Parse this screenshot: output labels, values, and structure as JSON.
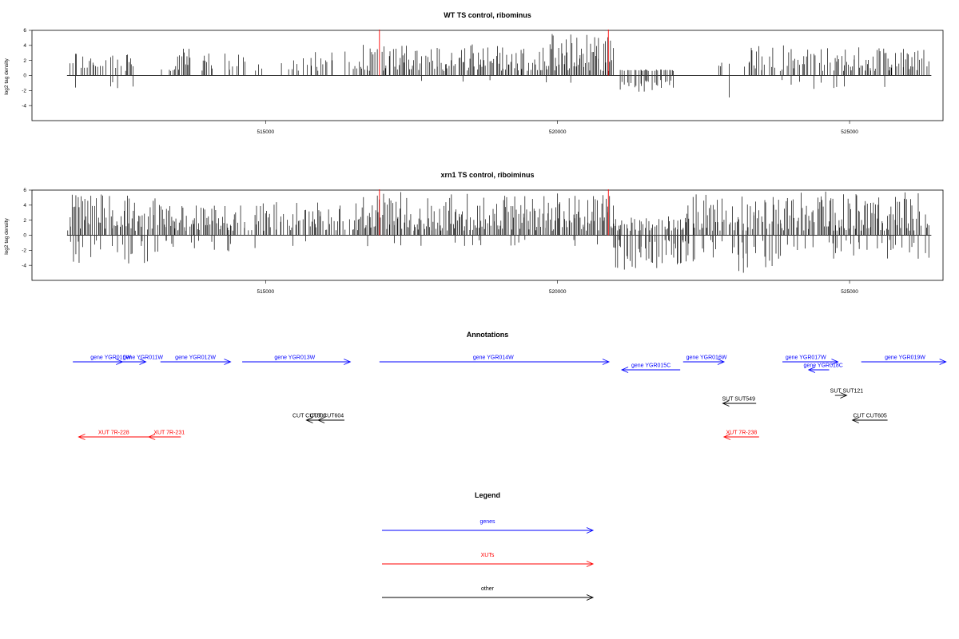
{
  "chart_data": [
    {
      "type": "bar",
      "title": "WT TS control, ribominus",
      "xlabel": "",
      "ylabel": "log2 tag density",
      "xlim": [
        511000,
        526600
      ],
      "ylim": [
        -6,
        6
      ],
      "xticks": [
        515000,
        520000,
        525000
      ],
      "yticks": [
        6,
        4,
        2,
        0,
        -2,
        -4
      ],
      "xtick_labels": [
        "515000",
        "520000",
        "525000"
      ],
      "ytick_labels": [
        "6",
        "4",
        "2",
        "0",
        "-2",
        "-4"
      ],
      "baseline_x": [
        511600,
        526400
      ],
      "grid": false,
      "marker_color": "#ff0000",
      "marker_x": [
        516950,
        520870
      ],
      "series": [
        {
          "name": "",
          "color": "#000000",
          "segments": [
            {
              "x_range": [
                511650,
                512750
              ],
              "density": 0.55,
              "max": 3.0,
              "neg_prob": 0.15,
              "neg_max": 2.2
            },
            {
              "x_range": [
                513200,
                514100
              ],
              "density": 0.45,
              "max": 3.6,
              "neg_prob": 0.05,
              "neg_max": 2.0
            },
            {
              "x_range": [
                514300,
                516600
              ],
              "density": 0.3,
              "max": 3.3,
              "neg_prob": 0.0,
              "neg_max": 0
            },
            {
              "x_range": [
                516600,
                519800
              ],
              "density": 0.75,
              "max": 4.2,
              "neg_prob": 0.02,
              "neg_max": 1.0
            },
            {
              "x_range": [
                519800,
                520950
              ],
              "density": 0.85,
              "max": 5.6,
              "neg_prob": 0.02,
              "neg_max": 1.0
            },
            {
              "x_range": [
                521050,
                522100
              ],
              "density": 0.4,
              "max": 0.8,
              "neg_prob": 0.95,
              "neg_max": 2.2
            },
            {
              "x_range": [
                522600,
                523100
              ],
              "density": 0.2,
              "max": 2.5,
              "neg_prob": 0.3,
              "neg_max": 3.0
            },
            {
              "x_range": [
                523200,
                524800
              ],
              "density": 0.55,
              "max": 4.0,
              "neg_prob": 0.2,
              "neg_max": 1.8
            },
            {
              "x_range": [
                524800,
                526350
              ],
              "density": 0.7,
              "max": 3.8,
              "neg_prob": 0.05,
              "neg_max": 2.4
            }
          ]
        }
      ]
    },
    {
      "type": "bar",
      "title": "xrn1 TS control, riboiminus",
      "xlabel": "",
      "ylabel": "log2 tag density",
      "xlim": [
        511000,
        526600
      ],
      "ylim": [
        -6,
        6
      ],
      "xticks": [
        515000,
        520000,
        525000
      ],
      "yticks": [
        6,
        4,
        2,
        0,
        -2,
        -4
      ],
      "xtick_labels": [
        "515000",
        "520000",
        "525000"
      ],
      "ytick_labels": [
        "6",
        "4",
        "2",
        "0",
        "-2",
        "-4"
      ],
      "baseline_x": [
        511600,
        526400
      ],
      "grid": false,
      "marker_color": "#ff0000",
      "marker_x": [
        516950,
        520870
      ],
      "series": [
        {
          "name": "",
          "color": "#000000",
          "segments": [
            {
              "x_range": [
                511600,
                513200
              ],
              "density": 0.9,
              "max": 5.5,
              "neg_prob": 0.35,
              "neg_max": 3.8
            },
            {
              "x_range": [
                513200,
                514500
              ],
              "density": 0.85,
              "max": 4.0,
              "neg_prob": 0.25,
              "neg_max": 2.5
            },
            {
              "x_range": [
                514500,
                516600
              ],
              "density": 0.7,
              "max": 4.5,
              "neg_prob": 0.1,
              "neg_max": 2.0
            },
            {
              "x_range": [
                516600,
                520950
              ],
              "density": 0.92,
              "max": 5.8,
              "neg_prob": 0.05,
              "neg_max": 1.5
            },
            {
              "x_range": [
                520950,
                522200
              ],
              "density": 0.8,
              "max": 2.5,
              "neg_prob": 0.85,
              "neg_max": 4.8
            },
            {
              "x_range": [
                522200,
                523800
              ],
              "density": 0.8,
              "max": 5.6,
              "neg_prob": 0.45,
              "neg_max": 5.5
            },
            {
              "x_range": [
                523800,
                526350
              ],
              "density": 0.92,
              "max": 5.8,
              "neg_prob": 0.25,
              "neg_max": 3.6
            }
          ]
        }
      ]
    }
  ],
  "annotations": {
    "title": "Annotations",
    "features": [
      {
        "label": "gene YGR010W",
        "color": "#0000ff",
        "start": 511700,
        "end": 512550,
        "strand": "+",
        "row": 0,
        "label_x": 512350
      },
      {
        "label": "gene YGR011W",
        "color": "#0000ff",
        "start": 512400,
        "end": 512950,
        "strand": "+",
        "row": 0,
        "label_x": 512900
      },
      {
        "label": "gene YGR012W",
        "color": "#0000ff",
        "start": 513200,
        "end": 514400,
        "strand": "+",
        "row": 0,
        "label_x": 513800
      },
      {
        "label": "gene YGR013W",
        "color": "#0000ff",
        "start": 514600,
        "end": 516450,
        "strand": "+",
        "row": 0,
        "label_x": 515500
      },
      {
        "label": "gene YGR014W",
        "color": "#0000ff",
        "start": 516950,
        "end": 520880,
        "strand": "+",
        "row": 0,
        "label_x": 518900
      },
      {
        "label": "gene YGR015C",
        "color": "#0000ff",
        "start": 521100,
        "end": 522100,
        "strand": "-",
        "row": 1,
        "label_x": 521600
      },
      {
        "label": "gene YGR016W",
        "color": "#0000ff",
        "start": 522150,
        "end": 522850,
        "strand": "+",
        "row": 0,
        "label_x": 522550
      },
      {
        "label": "gene YGR017W",
        "color": "#0000ff",
        "start": 523850,
        "end": 524800,
        "strand": "+",
        "row": 0,
        "label_x": 524250
      },
      {
        "label": "gene YGR018C",
        "color": "#0000ff",
        "start": 524300,
        "end": 524650,
        "strand": "-",
        "row": 1,
        "label_x": 524550
      },
      {
        "label": "gene YGR019W",
        "color": "#0000ff",
        "start": 525200,
        "end": 526650,
        "strand": "+",
        "row": 0,
        "label_x": 525950
      },
      {
        "label": "SUT SUT549",
        "color": "#000000",
        "start": 522830,
        "end": 523400,
        "strand": "-",
        "row": 4,
        "label_x": 523100
      },
      {
        "label": "SUT SUT121",
        "color": "#000000",
        "start": 524750,
        "end": 524950,
        "strand": "+",
        "row": 3,
        "label_x": 524950
      },
      {
        "label": "CUT CUT603",
        "color": "#000000",
        "start": 515700,
        "end": 516000,
        "strand": "-",
        "row": 5,
        "label_x": 515750
      },
      {
        "label": "CUT CUT604",
        "color": "#000000",
        "start": 515900,
        "end": 516350,
        "strand": "-",
        "row": 5,
        "label_x": 516050
      },
      {
        "label": "CUT CUT605",
        "color": "#000000",
        "start": 525050,
        "end": 525650,
        "strand": "-",
        "row": 5,
        "label_x": 525350
      },
      {
        "label": "XUT 7R-228",
        "color": "#ff0000",
        "start": 511800,
        "end": 513000,
        "strand": "-",
        "row": 6,
        "label_x": 512400
      },
      {
        "label": "XUT 7R-231",
        "color": "#ff0000",
        "start": 513000,
        "end": 513550,
        "strand": "-",
        "row": 6,
        "label_x": 513350
      },
      {
        "label": "XUT 7R-238",
        "color": "#ff0000",
        "start": 522850,
        "end": 523450,
        "strand": "-",
        "row": 6,
        "label_x": 523150
      }
    ]
  },
  "legend": {
    "title": "Legend",
    "items": [
      {
        "label": "genes",
        "color": "#0000ff"
      },
      {
        "label": "XUTs",
        "color": "#ff0000"
      },
      {
        "label": "other",
        "color": "#000000"
      }
    ]
  }
}
